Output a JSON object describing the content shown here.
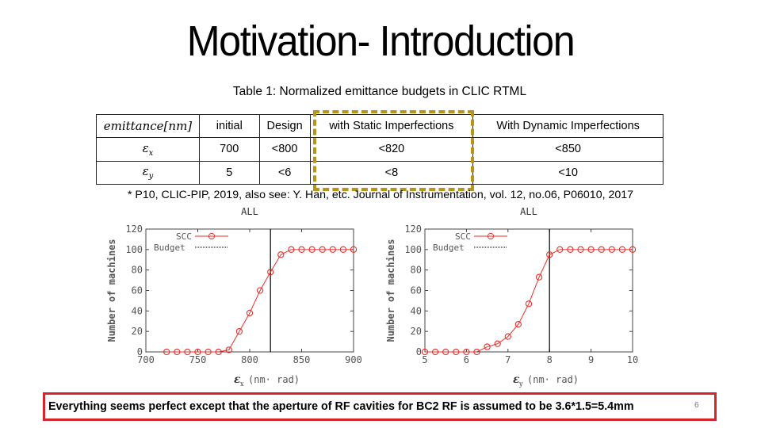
{
  "slide": {
    "title": "Motivation- Introduction",
    "page_number": "6"
  },
  "table": {
    "caption": "Table 1: Normalized emittance budgets in CLIC RTML",
    "header": [
      "emittance[nm]",
      "initial",
      "Design",
      "with Static Imperfections",
      "With Dynamic Imperfections"
    ],
    "rows": [
      {
        "symbol": "ε",
        "subscript": "x",
        "cells": [
          "700",
          "<800",
          "<820",
          "<850"
        ]
      },
      {
        "symbol": "ε",
        "subscript": "y",
        "cells": [
          "5",
          "<6",
          "<8",
          "<10"
        ]
      }
    ],
    "highlight_color": "#b99419"
  },
  "footnote": "* P10, CLIC-PIP, 2019, also see: Y. Han, etc. Journal of Instrumentation, vol. 12, no.06, P06010, 2017",
  "note": {
    "text": "Everything seems perfect except that the aperture of RF cavities for BC2 RF is assumed  to be 3.6*1.5=5.4mm",
    "border_color": "#d4262a"
  },
  "chart_data": [
    {
      "type": "line",
      "title": "ALL",
      "xlabel": "ε",
      "xlabel_sub": "x",
      "xlabel_units": "(nm· rad)",
      "ylabel": "Number of machines",
      "xlim": [
        700,
        900
      ],
      "ylim": [
        0,
        120
      ],
      "xticks": [
        "700",
        "750",
        "800",
        "850",
        "900"
      ],
      "yticks": [
        "0",
        "20",
        "40",
        "60",
        "80",
        "100",
        "120"
      ],
      "legend": [
        {
          "name": "SCC",
          "color": "#e8302a"
        },
        {
          "name": "Budget",
          "color": "#000000"
        }
      ],
      "series": [
        {
          "name": "SCC",
          "x": [
            720,
            730,
            740,
            750,
            760,
            770,
            780,
            790,
            800,
            810,
            820,
            830,
            840,
            850,
            860,
            870,
            880,
            890,
            900
          ],
          "values": [
            0,
            0,
            0,
            0,
            0,
            0,
            2,
            20,
            38,
            60,
            78,
            95,
            100,
            100,
            100,
            100,
            100,
            100,
            100
          ]
        }
      ],
      "budget": 820
    },
    {
      "type": "line",
      "title": "ALL",
      "xlabel": "ε",
      "xlabel_sub": "y",
      "xlabel_units": "(nm· rad)",
      "ylabel": "Number of machines",
      "xlim": [
        5,
        10
      ],
      "ylim": [
        0,
        120
      ],
      "xticks": [
        "5",
        "6",
        "7",
        "8",
        "9",
        "10"
      ],
      "yticks": [
        "0",
        "20",
        "40",
        "60",
        "80",
        "100",
        "120"
      ],
      "legend": [
        {
          "name": "SCC",
          "color": "#e8302a"
        },
        {
          "name": "Budget",
          "color": "#000000"
        }
      ],
      "series": [
        {
          "name": "SCC",
          "x": [
            5.0,
            5.25,
            5.5,
            5.75,
            6.0,
            6.25,
            6.5,
            6.75,
            7.0,
            7.25,
            7.5,
            7.75,
            8.0,
            8.25,
            8.5,
            8.75,
            9.0,
            9.25,
            9.5,
            9.75,
            10.0
          ],
          "values": [
            0,
            0,
            0,
            0,
            0,
            0,
            5,
            8,
            15,
            27,
            47,
            73,
            95,
            100,
            100,
            100,
            100,
            100,
            100,
            100,
            100
          ]
        }
      ],
      "budget": 8
    }
  ]
}
